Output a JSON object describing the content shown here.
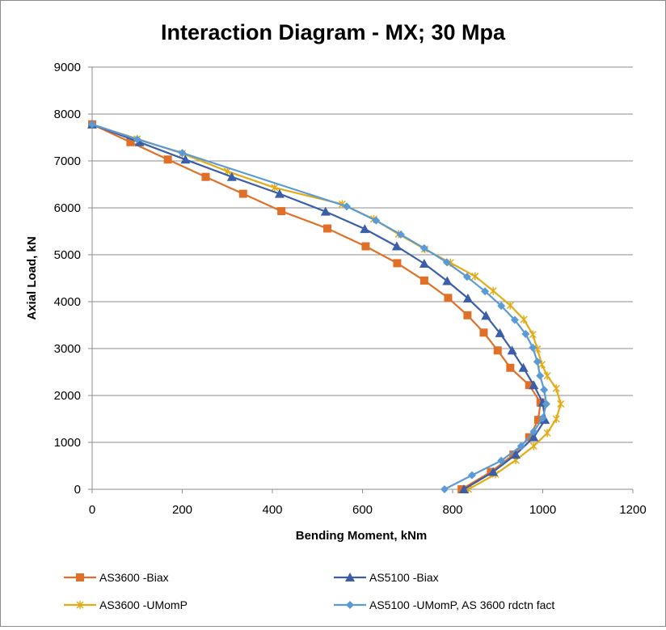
{
  "chart_data": {
    "type": "line",
    "title": "Interaction Diagram - MX; 30 Mpa",
    "xlabel": "Bending Moment, kNm",
    "ylabel": "Axial Load, kN",
    "xlim": [
      0,
      1200
    ],
    "ylim": [
      0,
      9000
    ],
    "xticks": [
      0,
      200,
      400,
      600,
      800,
      1000,
      1200
    ],
    "yticks": [
      0,
      1000,
      2000,
      3000,
      4000,
      5000,
      6000,
      7000,
      8000,
      9000
    ],
    "grid": "horizontal",
    "legend_position": "bottom",
    "series": [
      {
        "name": "AS3600 -Biax",
        "color": "#E07028",
        "marker": "square",
        "points": [
          [
            0,
            7780
          ],
          [
            85,
            7400
          ],
          [
            168,
            7030
          ],
          [
            252,
            6660
          ],
          [
            335,
            6300
          ],
          [
            420,
            5930
          ],
          [
            522,
            5560
          ],
          [
            607,
            5180
          ],
          [
            677,
            4820
          ],
          [
            737,
            4450
          ],
          [
            790,
            4080
          ],
          [
            833,
            3710
          ],
          [
            869,
            3340
          ],
          [
            900,
            2960
          ],
          [
            928,
            2590
          ],
          [
            970,
            2220
          ],
          [
            995,
            1850
          ],
          [
            990,
            1480
          ],
          [
            970,
            1110
          ],
          [
            935,
            740
          ],
          [
            885,
            370
          ],
          [
            820,
            0
          ]
        ]
      },
      {
        "name": "AS5100 -Biax",
        "color": "#3A5FA8",
        "marker": "triangle",
        "points": [
          [
            0,
            7780
          ],
          [
            105,
            7400
          ],
          [
            207,
            7030
          ],
          [
            310,
            6660
          ],
          [
            416,
            6300
          ],
          [
            518,
            5920
          ],
          [
            605,
            5550
          ],
          [
            676,
            5180
          ],
          [
            737,
            4810
          ],
          [
            788,
            4440
          ],
          [
            834,
            4070
          ],
          [
            874,
            3700
          ],
          [
            905,
            3330
          ],
          [
            932,
            2960
          ],
          [
            957,
            2590
          ],
          [
            980,
            2220
          ],
          [
            1000,
            1850
          ],
          [
            1005,
            1480
          ],
          [
            980,
            1110
          ],
          [
            940,
            740
          ],
          [
            890,
            370
          ],
          [
            825,
            0
          ]
        ]
      },
      {
        "name": "AS3600 -UMomP",
        "color": "#E3AC16",
        "marker": "x",
        "points": [
          [
            0,
            7780
          ],
          [
            100,
            7470
          ],
          [
            200,
            7160
          ],
          [
            300,
            6780
          ],
          [
            405,
            6430
          ],
          [
            555,
            6080
          ],
          [
            625,
            5760
          ],
          [
            680,
            5440
          ],
          [
            738,
            5120
          ],
          [
            795,
            4830
          ],
          [
            850,
            4540
          ],
          [
            890,
            4230
          ],
          [
            928,
            3920
          ],
          [
            958,
            3620
          ],
          [
            978,
            3300
          ],
          [
            988,
            2990
          ],
          [
            998,
            2660
          ],
          [
            1010,
            2420
          ],
          [
            1030,
            2150
          ],
          [
            1040,
            1820
          ],
          [
            1030,
            1500
          ],
          [
            1010,
            1200
          ],
          [
            980,
            920
          ],
          [
            940,
            620
          ],
          [
            895,
            320
          ],
          [
            835,
            0
          ]
        ]
      },
      {
        "name": "AS5100 -UMomP, AS 3600 rdctn fact",
        "color": "#5B9BD5",
        "marker": "diamond",
        "points": [
          [
            0,
            7780
          ],
          [
            100,
            7460
          ],
          [
            200,
            7170
          ],
          [
            565,
            6030
          ],
          [
            630,
            5730
          ],
          [
            685,
            5430
          ],
          [
            737,
            5140
          ],
          [
            787,
            4840
          ],
          [
            832,
            4530
          ],
          [
            872,
            4220
          ],
          [
            908,
            3910
          ],
          [
            938,
            3610
          ],
          [
            962,
            3310
          ],
          [
            978,
            3020
          ],
          [
            988,
            2720
          ],
          [
            994,
            2420
          ],
          [
            1003,
            2120
          ],
          [
            1008,
            1820
          ],
          [
            1000,
            1520
          ],
          [
            980,
            1230
          ],
          [
            952,
            920
          ],
          [
            908,
            610
          ],
          [
            843,
            300
          ],
          [
            782,
            0
          ]
        ]
      }
    ]
  }
}
